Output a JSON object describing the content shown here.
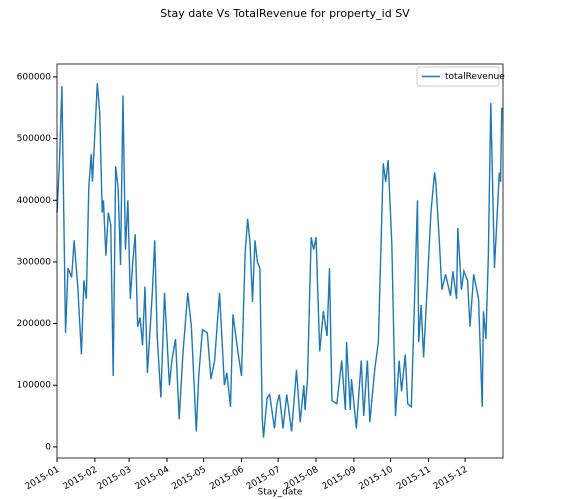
{
  "chart_data": {
    "type": "line",
    "title": "Stay date Vs TotalRevenue for property_id SV",
    "x_label": "Stay_date",
    "legend": "upper right",
    "xlim": [
      0,
      365
    ],
    "xticks": [
      {
        "value": 0,
        "label": "2015-01"
      },
      {
        "value": 31,
        "label": "2015-02"
      },
      {
        "value": 59,
        "label": "2015-03"
      },
      {
        "value": 90,
        "label": "2015-04"
      },
      {
        "value": 120,
        "label": "2015-05"
      },
      {
        "value": 151,
        "label": "2015-06"
      },
      {
        "value": 181,
        "label": "2015-07"
      },
      {
        "value": 212,
        "label": "2015-08"
      },
      {
        "value": 243,
        "label": "2015-09"
      },
      {
        "value": 273,
        "label": "2015-10"
      },
      {
        "value": 304,
        "label": "2015-11"
      },
      {
        "value": 334,
        "label": "2015-12"
      }
    ],
    "ylim": [
      -18000,
      621000
    ],
    "yticks": [
      0,
      100000,
      200000,
      300000,
      400000,
      500000,
      600000
    ],
    "x": [
      0,
      2,
      4,
      7,
      9,
      12,
      14,
      17,
      20,
      22,
      24,
      26,
      28,
      29,
      33,
      35,
      37,
      38,
      40,
      42,
      44,
      46,
      48,
      50,
      52,
      54,
      56,
      58,
      60,
      62,
      64,
      66,
      68,
      70,
      72,
      74,
      78,
      80,
      82,
      85,
      88,
      92,
      94,
      97,
      100,
      103,
      107,
      110,
      114,
      116,
      119,
      123,
      126,
      129,
      133,
      137,
      139,
      142,
      144,
      148,
      151,
      154,
      156,
      158,
      160,
      162,
      164,
      166,
      168,
      169,
      172,
      174,
      178,
      180,
      182,
      185,
      188,
      192,
      196,
      199,
      202,
      203,
      205,
      208,
      210,
      212,
      215,
      218,
      221,
      223,
      225,
      229,
      233,
      236,
      237,
      240,
      241,
      245,
      249,
      251,
      254,
      256,
      260,
      263,
      267,
      269,
      271,
      274,
      277,
      280,
      282,
      285,
      287,
      290,
      295,
      296,
      298,
      300,
      303,
      306,
      309,
      310,
      313,
      315,
      318,
      322,
      324,
      327,
      328,
      331,
      333,
      336,
      338,
      341,
      343,
      345,
      348,
      349,
      351,
      353,
      355,
      358,
      362,
      363,
      364
    ],
    "series": [
      {
        "name": "totalRevenue",
        "color": "#1f77b4",
        "values": [
          380000,
          460000,
          585000,
          185000,
          290000,
          275000,
          335000,
          260000,
          150000,
          270000,
          240000,
          420000,
          475000,
          430000,
          590000,
          540000,
          380000,
          400000,
          310000,
          380000,
          360000,
          115000,
          455000,
          420000,
          295000,
          570000,
          320000,
          400000,
          240000,
          300000,
          345000,
          195000,
          210000,
          165000,
          260000,
          120000,
          250000,
          335000,
          180000,
          80000,
          250000,
          100000,
          140000,
          175000,
          45000,
          150000,
          250000,
          195000,
          25000,
          115000,
          190000,
          185000,
          110000,
          140000,
          250000,
          100000,
          120000,
          65000,
          215000,
          155000,
          115000,
          315000,
          370000,
          330000,
          235000,
          335000,
          300000,
          290000,
          45000,
          15000,
          80000,
          85000,
          30000,
          70000,
          85000,
          30000,
          85000,
          25000,
          125000,
          40000,
          100000,
          60000,
          110000,
          340000,
          320000,
          340000,
          155000,
          220000,
          180000,
          290000,
          75000,
          70000,
          140000,
          60000,
          170000,
          60000,
          110000,
          30000,
          140000,
          50000,
          140000,
          40000,
          125000,
          170000,
          460000,
          430000,
          465000,
          330000,
          50000,
          140000,
          90000,
          150000,
          70000,
          65000,
          400000,
          170000,
          230000,
          145000,
          260000,
          380000,
          445000,
          430000,
          330000,
          255000,
          280000,
          245000,
          285000,
          240000,
          355000,
          255000,
          285000,
          270000,
          195000,
          280000,
          260000,
          240000,
          65000,
          220000,
          175000,
          310000,
          558000,
          290000,
          445000,
          430000,
          550000
        ]
      }
    ]
  }
}
